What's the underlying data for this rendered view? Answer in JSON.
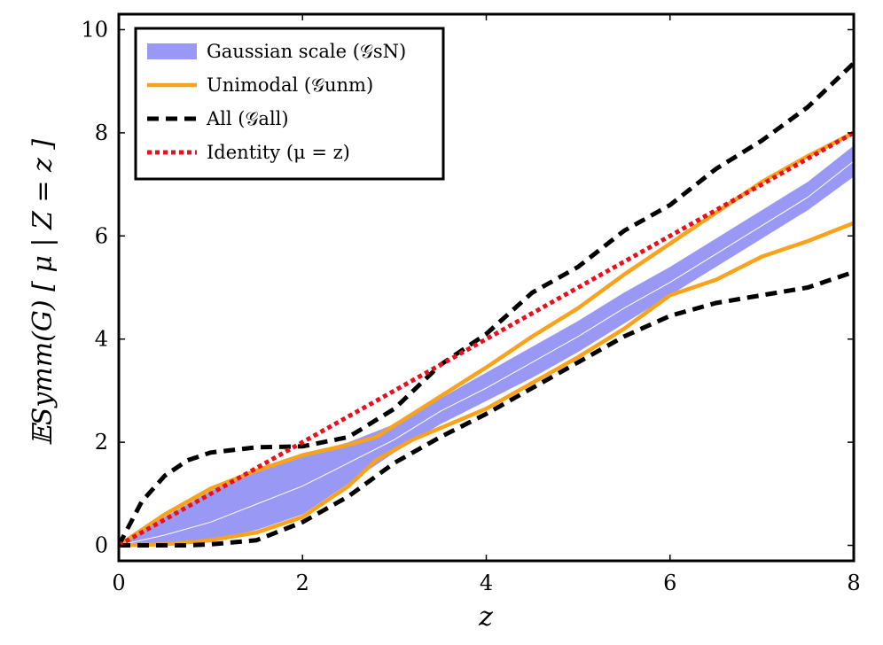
{
  "chart_data": {
    "type": "line",
    "title": "",
    "xlabel": "z",
    "ylabel": "𝔼Symm(G) [ μ | Z = z ]",
    "xlim": [
      0,
      8
    ],
    "ylim": [
      -0.3,
      10.3
    ],
    "xticks": [
      0,
      2,
      4,
      6,
      8
    ],
    "yticks": [
      0,
      2,
      4,
      6,
      8,
      10
    ],
    "grid": false,
    "legend_position": "top-left",
    "series": [
      {
        "name": "Gaussian scale (𝒢sN)",
        "kind": "band",
        "color": "#9999f5",
        "x": [
          0,
          0.5,
          1,
          1.5,
          2,
          2.5,
          3,
          3.5,
          4,
          4.5,
          5,
          5.5,
          6,
          6.5,
          7,
          7.5,
          8
        ],
        "upper": [
          0,
          0.55,
          1.05,
          1.45,
          1.75,
          2.0,
          2.35,
          2.85,
          3.35,
          3.85,
          4.35,
          4.9,
          5.4,
          5.95,
          6.5,
          7.05,
          7.75
        ],
        "lower": [
          0,
          0.02,
          0.1,
          0.3,
          0.6,
          1.2,
          1.8,
          2.35,
          2.8,
          3.25,
          3.75,
          4.3,
          4.85,
          5.4,
          5.95,
          6.5,
          7.15
        ],
        "center": [
          0,
          0.2,
          0.45,
          0.8,
          1.15,
          1.6,
          2.05,
          2.6,
          3.05,
          3.55,
          4.05,
          4.6,
          5.1,
          5.65,
          6.2,
          6.75,
          7.45
        ]
      },
      {
        "name": "Unimodal (𝒢unm)",
        "kind": "line",
        "style": "solid",
        "color": "#f9a21b",
        "x": [
          0,
          0.5,
          1,
          1.5,
          2,
          2.5,
          2.8,
          3.2,
          3.6,
          4,
          4.5,
          5,
          5.5,
          6,
          6.5,
          7,
          7.5,
          8
        ],
        "upper": [
          0,
          0.6,
          1.1,
          1.45,
          1.75,
          1.95,
          2.1,
          2.55,
          3.0,
          3.45,
          4.05,
          4.6,
          5.25,
          5.85,
          6.45,
          7.05,
          7.55,
          8.0
        ],
        "lower": [
          0,
          0.02,
          0.1,
          0.25,
          0.55,
          1.15,
          1.65,
          2.05,
          2.35,
          2.65,
          3.15,
          3.65,
          4.2,
          4.85,
          5.15,
          5.6,
          5.9,
          6.25
        ]
      },
      {
        "name": "All (𝒢all)",
        "kind": "line",
        "style": "dashed",
        "color": "#000000",
        "x": [
          0,
          0.25,
          0.5,
          0.75,
          1,
          1.5,
          2,
          2.5,
          3,
          3.5,
          4,
          4.5,
          5,
          5.5,
          6,
          6.5,
          7,
          7.5,
          8
        ],
        "upper": [
          0,
          0.85,
          1.35,
          1.65,
          1.8,
          1.9,
          1.92,
          2.1,
          2.65,
          3.5,
          4.1,
          4.9,
          5.4,
          6.1,
          6.6,
          7.3,
          7.85,
          8.5,
          9.35
        ],
        "lower": [
          0,
          0.0,
          0.0,
          0.0,
          0.02,
          0.1,
          0.45,
          0.95,
          1.6,
          2.1,
          2.55,
          3.05,
          3.55,
          4.05,
          4.45,
          4.7,
          4.85,
          5.0,
          5.3
        ]
      },
      {
        "name": "Identity (μ = z)",
        "kind": "line",
        "style": "dotted",
        "color": "#e8101c",
        "x": [
          0,
          8
        ],
        "y": [
          0,
          8
        ]
      }
    ]
  }
}
